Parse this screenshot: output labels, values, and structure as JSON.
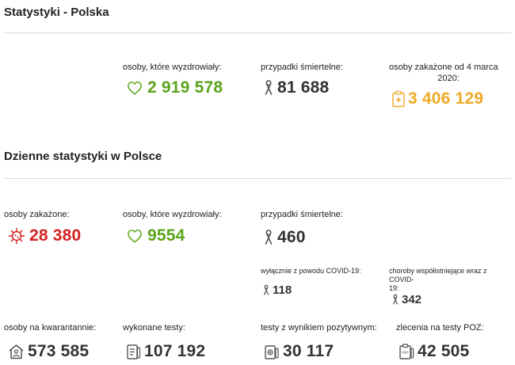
{
  "section_poland": {
    "title": "Statystyki - Polska",
    "recovered": {
      "label": "osoby, które wyzdrowiały:",
      "value": "2 919 578"
    },
    "deaths": {
      "label": "przypadki śmiertelne:",
      "value": "81 688"
    },
    "infected": {
      "label_line1": "osoby zakażone od 4 marca",
      "label_line2": "2020:",
      "value": "3 406 129"
    }
  },
  "section_daily": {
    "title": "Dzienne statystyki w Polsce",
    "infected": {
      "label": "osoby zakażone:",
      "value": "28 380"
    },
    "recovered": {
      "label": "osoby, które wyzdrowiały:",
      "value": "9554"
    },
    "deaths": {
      "label": "przypadki śmiertelne:",
      "value": "460"
    },
    "deaths_covid_only": {
      "label": "wyłącznie z powodu COVID-19:",
      "value": "118"
    },
    "deaths_comorbid": {
      "label_line1": "choroby współistniejące wraz z COVID-",
      "label_line2": "19:",
      "value": "342"
    },
    "quarantine": {
      "label": "osoby na kwarantannie:",
      "value": "573 585"
    },
    "tests_done": {
      "label": "wykonane testy:",
      "value": "107 192"
    },
    "tests_positive": {
      "label": "testy z wynikiem pozytywnym:",
      "value": "30 117"
    },
    "poz_orders": {
      "label": "zlecenia na testy POZ:",
      "value": "42 505"
    }
  },
  "colors": {
    "green": "#5aa41a",
    "red": "#d52222",
    "orange": "#efaa26",
    "dark": "#333333"
  },
  "icons": [
    "heart-icon",
    "ribbon-icon",
    "clipboard-cross-icon",
    "virus-icon",
    "house-person-icon",
    "test-clipboard-icon",
    "positive-test-icon",
    "poz-test-icon"
  ]
}
